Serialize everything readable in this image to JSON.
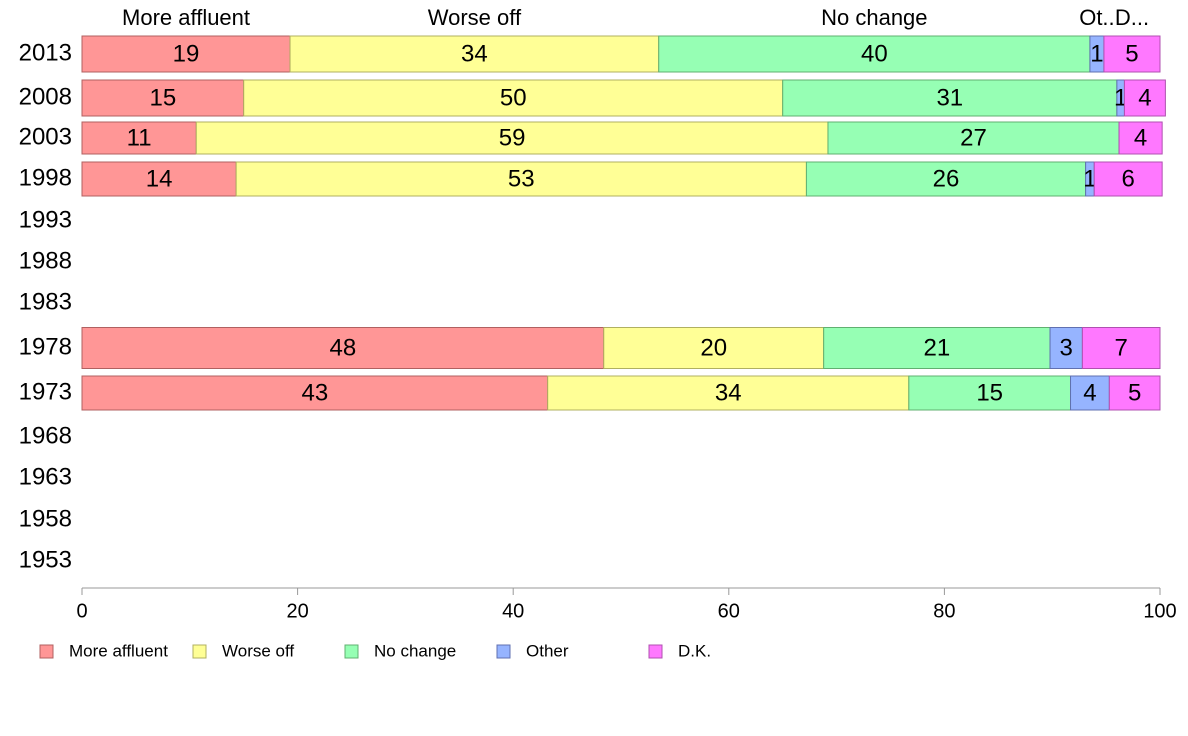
{
  "chart_data": {
    "type": "bar",
    "orientation": "horizontal",
    "stacked": true,
    "categories": [
      "2013",
      "2008",
      "2003",
      "1998",
      "1993",
      "1988",
      "1983",
      "1978",
      "1973",
      "1968",
      "1963",
      "1958",
      "1953"
    ],
    "series": [
      {
        "name": "More affluent",
        "color": "#ff9696",
        "stroke": "#b06060",
        "values": [
          19.3,
          15.0,
          10.6,
          14.3,
          null,
          null,
          null,
          48.4,
          43.2,
          null,
          null,
          null,
          null
        ],
        "labels": [
          "19",
          "15",
          "11",
          "14",
          "",
          "",
          "",
          "48",
          "43",
          "",
          "",
          "",
          ""
        ]
      },
      {
        "name": "Worse off",
        "color": "#ffff96",
        "stroke": "#b0b060",
        "values": [
          34.2,
          50.0,
          58.6,
          52.9,
          null,
          null,
          null,
          20.4,
          33.5,
          null,
          null,
          null,
          null
        ],
        "labels": [
          "34",
          "50",
          "59",
          "53",
          "",
          "",
          "",
          "20",
          "34",
          "",
          "",
          "",
          ""
        ]
      },
      {
        "name": "No change",
        "color": "#96ffb4",
        "stroke": "#60b070",
        "values": [
          40.0,
          31.0,
          27.0,
          25.9,
          null,
          null,
          null,
          21.0,
          15.0,
          null,
          null,
          null,
          null
        ],
        "labels": [
          "40",
          "31",
          "27",
          "26",
          "",
          "",
          "",
          "21",
          "15",
          "",
          "",
          "",
          ""
        ]
      },
      {
        "name": "Other",
        "color": "#96b4ff",
        "stroke": "#6070b0",
        "values": [
          1.3,
          0.7,
          0.0,
          0.8,
          null,
          null,
          null,
          3.0,
          3.6,
          null,
          null,
          null,
          null
        ],
        "labels": [
          "1",
          "1",
          "",
          "1",
          "",
          "",
          "",
          "3",
          "4",
          "",
          "",
          "",
          ""
        ]
      },
      {
        "name": "D.K.",
        "color": "#ff78ff",
        "stroke": "#b050b0",
        "values": [
          5.2,
          3.8,
          4.0,
          6.3,
          null,
          null,
          null,
          7.2,
          4.7,
          null,
          null,
          null,
          null
        ],
        "labels": [
          "5",
          "4",
          "4",
          "6",
          "",
          "",
          "",
          "7",
          "5",
          "",
          "",
          "",
          ""
        ]
      }
    ],
    "column_headers": [
      "More affluent",
      "Worse off",
      "No change",
      "Ot..",
      "D..."
    ],
    "xlim": [
      0,
      100
    ],
    "xticks": [
      "0",
      "20",
      "40",
      "60",
      "80",
      "100"
    ],
    "grid": false,
    "legend": {
      "position": "bottom-left",
      "items": [
        "More affluent",
        "Worse off",
        "No change",
        "Other",
        "D.K."
      ]
    }
  }
}
